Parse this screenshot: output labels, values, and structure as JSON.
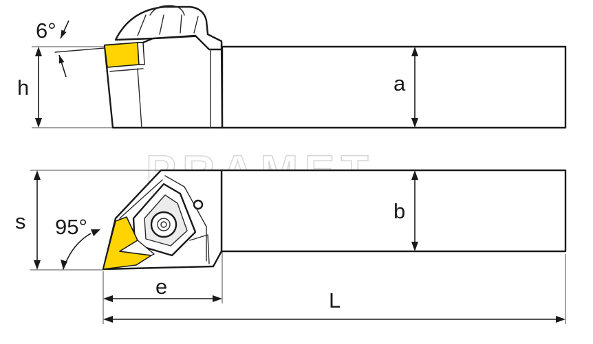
{
  "colors": {
    "insert": "#ffd400",
    "outline": "#1a1a1a",
    "watermark": "#d8d8d8",
    "background": "#ffffff"
  },
  "watermark": "PRAMET",
  "top_view": {
    "angle_label": "6°",
    "height_label": "h",
    "shank_height_label": "a"
  },
  "side_view": {
    "lead_angle_label": "95°",
    "width_label": "s",
    "shank_width_label": "b",
    "offset_label": "e",
    "length_label": "L"
  }
}
